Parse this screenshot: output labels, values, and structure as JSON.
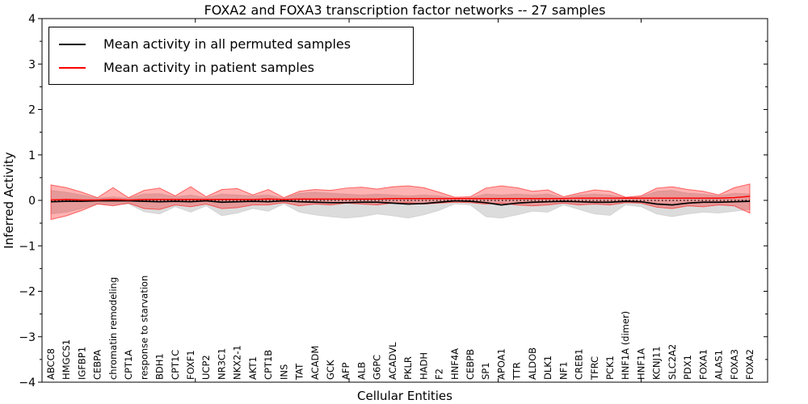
{
  "title": "FOXA2 and FOXA3 transcription factor networks -- 27 samples",
  "legend": {
    "items": [
      {
        "label": "Mean activity in all permuted samples",
        "color": "#000000"
      },
      {
        "label": "Mean activity in patient samples",
        "color": "#ff0000"
      }
    ]
  },
  "chart_data": {
    "type": "line",
    "title": "FOXA2 and FOXA3 transcription factor networks -- 27 samples",
    "xlabel": "Cellular Entities",
    "ylabel": "Inferred Activity",
    "ylim": [
      -4,
      4
    ],
    "yticks": [
      -4,
      -3,
      -2,
      -1,
      0,
      1,
      2,
      3,
      4
    ],
    "yticks_minor": [
      -3.5,
      -2.5,
      -1.5,
      -0.5,
      0.5,
      1.5,
      2.5,
      3.5
    ],
    "xticks_top_idx": [
      9.3,
      19.2,
      28.8,
      38.0
    ],
    "grid": false,
    "legend_position": "upper left",
    "categories": [
      "ABCC8",
      "HMGCS1",
      "IGFBP1",
      "CEBPA",
      "chromatin remodeling",
      "CPT1A",
      "response to starvation",
      "BDH1",
      "CPT1C",
      "FOXF1",
      "UCP2",
      "NR3C1",
      "NKX2-1",
      "AKT1",
      "CPT1B",
      "INS",
      "TAT",
      "ACADM",
      "GCK",
      "AFP",
      "ALB",
      "G6PC",
      "ACADVL",
      "PKLR",
      "HADH",
      "F2",
      "HNF4A",
      "CEBPB",
      "SP1",
      "APOA1",
      "TTR",
      "ALDOB",
      "DLK1",
      "NF1",
      "CREB1",
      "TFRC",
      "PCK1",
      "HNF1A (dimer)",
      "HNF1A",
      "KCNJ11",
      "SLC2A2",
      "PDX1",
      "FOXA1",
      "ALAS1",
      "FOXA3",
      "FOXA2"
    ],
    "series": [
      {
        "name": "Mean activity in all permuted samples",
        "color": "#000000",
        "style": "solid",
        "values": [
          -0.03,
          -0.02,
          -0.02,
          -0.01,
          -0.01,
          -0.01,
          -0.02,
          -0.03,
          -0.02,
          -0.03,
          -0.01,
          -0.04,
          -0.03,
          -0.02,
          -0.03,
          -0.01,
          -0.03,
          -0.04,
          -0.05,
          -0.05,
          -0.04,
          -0.04,
          -0.06,
          -0.08,
          -0.07,
          -0.04,
          -0.01,
          -0.02,
          -0.05,
          -0.1,
          -0.06,
          -0.04,
          -0.03,
          -0.02,
          -0.03,
          -0.04,
          -0.04,
          -0.02,
          -0.03,
          -0.08,
          -0.1,
          -0.06,
          -0.04,
          -0.04,
          -0.03,
          -0.02
        ]
      },
      {
        "name": "Mean activity in patient samples",
        "color": "#ff0000",
        "style": "solid",
        "values": [
          0.01,
          0.02,
          0.01,
          0.01,
          0.02,
          0.01,
          0.02,
          0.02,
          0.02,
          0.02,
          0.02,
          0.02,
          0.02,
          0.02,
          0.03,
          0.02,
          0.03,
          0.03,
          0.03,
          0.03,
          0.03,
          0.03,
          0.04,
          0.04,
          0.04,
          0.04,
          0.04,
          0.04,
          0.04,
          0.04,
          0.04,
          0.04,
          0.04,
          0.04,
          0.05,
          0.05,
          0.05,
          0.05,
          0.05,
          0.05,
          0.05,
          0.05,
          0.05,
          0.05,
          0.06,
          0.09
        ]
      }
    ],
    "bands": [
      {
        "name": "permuted-samples-std-band",
        "color": "#808080",
        "fill_opacity": 0.28,
        "edge_opacity": 0.18,
        "upper": [
          0.22,
          0.18,
          0.12,
          0.05,
          0.08,
          0.05,
          0.14,
          0.15,
          0.08,
          0.12,
          0.06,
          0.14,
          0.12,
          0.1,
          0.12,
          0.05,
          0.16,
          0.18,
          0.16,
          0.14,
          0.12,
          0.14,
          0.12,
          0.1,
          0.12,
          0.1,
          0.05,
          0.06,
          0.14,
          0.12,
          0.14,
          0.12,
          0.14,
          0.06,
          0.12,
          0.14,
          0.12,
          0.06,
          0.08,
          0.2,
          0.22,
          0.16,
          0.14,
          0.1,
          0.16,
          0.14
        ],
        "lower": [
          -0.3,
          -0.26,
          -0.18,
          -0.08,
          -0.1,
          -0.08,
          -0.25,
          -0.3,
          -0.14,
          -0.26,
          -0.12,
          -0.34,
          -0.28,
          -0.18,
          -0.24,
          -0.08,
          -0.26,
          -0.32,
          -0.36,
          -0.39,
          -0.36,
          -0.3,
          -0.34,
          -0.39,
          -0.32,
          -0.22,
          -0.08,
          -0.1,
          -0.36,
          -0.39,
          -0.32,
          -0.24,
          -0.26,
          -0.1,
          -0.2,
          -0.3,
          -0.33,
          -0.1,
          -0.14,
          -0.3,
          -0.36,
          -0.3,
          -0.26,
          -0.28,
          -0.24,
          -0.2
        ]
      },
      {
        "name": "patient-samples-std-band",
        "color": "#ff0000",
        "fill_opacity": 0.3,
        "edge_opacity": 0.55,
        "upper": [
          0.34,
          0.28,
          0.18,
          0.06,
          0.28,
          0.06,
          0.22,
          0.27,
          0.1,
          0.3,
          0.08,
          0.24,
          0.26,
          0.12,
          0.24,
          0.06,
          0.2,
          0.24,
          0.22,
          0.27,
          0.29,
          0.25,
          0.3,
          0.32,
          0.28,
          0.18,
          0.07,
          0.08,
          0.27,
          0.32,
          0.28,
          0.2,
          0.23,
          0.08,
          0.16,
          0.23,
          0.2,
          0.07,
          0.1,
          0.27,
          0.3,
          0.24,
          0.2,
          0.12,
          0.28,
          0.36
        ],
        "lower": [
          -0.42,
          -0.34,
          -0.22,
          -0.08,
          -0.12,
          -0.06,
          -0.18,
          -0.2,
          -0.1,
          -0.14,
          -0.08,
          -0.18,
          -0.16,
          -0.1,
          -0.1,
          -0.05,
          -0.12,
          -0.08,
          -0.1,
          -0.06,
          -0.08,
          -0.1,
          -0.06,
          -0.05,
          -0.08,
          -0.06,
          -0.04,
          -0.05,
          -0.08,
          -0.06,
          -0.1,
          -0.12,
          -0.1,
          -0.06,
          -0.1,
          -0.08,
          -0.1,
          -0.05,
          -0.06,
          -0.15,
          -0.18,
          -0.12,
          -0.14,
          -0.1,
          -0.12,
          -0.28
        ]
      }
    ],
    "zero_line": {
      "y": 0,
      "style": "dotted",
      "color": "#000000"
    }
  }
}
